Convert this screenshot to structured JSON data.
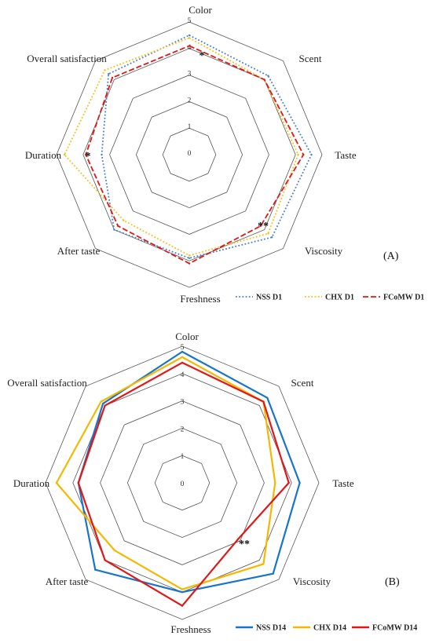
{
  "chart_data": [
    {
      "type": "radar",
      "panel_label": "(A)",
      "axes": [
        "Color",
        "Scent",
        "Taste",
        "Viscosity",
        "Freshness",
        "After taste",
        "Duration",
        "Overall satisfaction"
      ],
      "rlim": [
        0,
        5
      ],
      "ticks": [
        "0",
        "1",
        "2",
        "3",
        "4",
        "5"
      ],
      "grid": true,
      "legend_position": "bottom-right",
      "series": [
        {
          "name": "NSS D1",
          "color": "#4a7fd0",
          "style": "dotted",
          "values": [
            4.5,
            4.2,
            4.6,
            4.4,
            3.9,
            4.0,
            3.3,
            4.3
          ]
        },
        {
          "name": "CHX D1",
          "color": "#f2c218",
          "style": "dotted",
          "values": [
            4.4,
            4.0,
            4.1,
            4.2,
            3.8,
            3.5,
            4.7,
            4.5
          ]
        },
        {
          "name": "FCoMW D1",
          "color": "#e01818",
          "style": "dashed",
          "values": [
            4.1,
            4.0,
            4.3,
            3.8,
            4.1,
            3.8,
            3.9,
            4.1
          ]
        }
      ],
      "annotations": [
        {
          "text": "*",
          "axis": "Color"
        },
        {
          "text": "*",
          "axis": "Duration"
        },
        {
          "text": "**",
          "axis": "Viscosity"
        }
      ]
    },
    {
      "type": "radar",
      "panel_label": "(B)",
      "axes": [
        "Color",
        "Scent",
        "Taste",
        "Viscosity",
        "Freshness",
        "After taste",
        "Duration",
        "Overall satisfaction"
      ],
      "rlim": [
        0,
        5
      ],
      "ticks": [
        "0",
        "1",
        "2",
        "3",
        "4",
        "5"
      ],
      "grid": true,
      "legend_position": "bottom-right",
      "series": [
        {
          "name": "NSS D14",
          "color": "#1874c8",
          "style": "solid",
          "values": [
            4.8,
            4.4,
            4.3,
            4.7,
            4.0,
            4.5,
            3.8,
            4.1
          ]
        },
        {
          "name": "CHX D14",
          "color": "#f5b800",
          "style": "solid",
          "values": [
            4.6,
            4.2,
            3.4,
            4.2,
            3.9,
            3.5,
            4.6,
            4.2
          ]
        },
        {
          "name": "FCoMW D14",
          "color": "#e01818",
          "style": "solid",
          "values": [
            4.4,
            4.2,
            3.9,
            2.9,
            4.5,
            4.0,
            3.8,
            4.0
          ]
        }
      ],
      "annotations": [
        {
          "text": "**",
          "axis": "Viscosity"
        }
      ]
    }
  ]
}
